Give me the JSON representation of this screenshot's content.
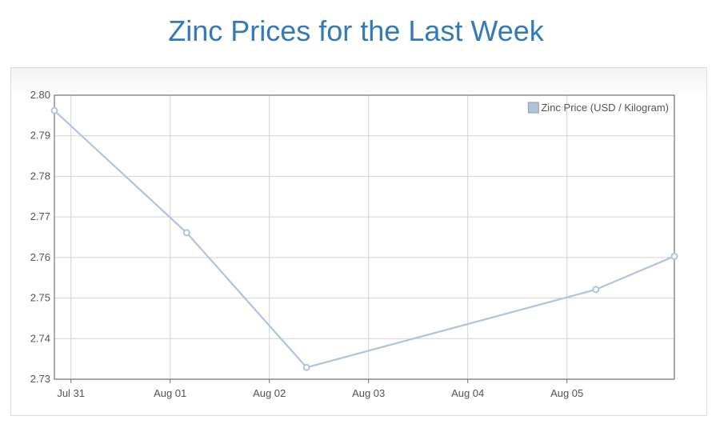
{
  "page": {
    "title": "Zinc Prices for the Last Week"
  },
  "chart_data": {
    "type": "line",
    "x_ticks": [
      "Jul 31",
      "Aug 01",
      "Aug 02",
      "Aug 03",
      "Aug 04",
      "Aug 05"
    ],
    "y_ticks": [
      "2.80",
      "2.79",
      "2.78",
      "2.77",
      "2.76",
      "2.75",
      "2.74",
      "2.73"
    ],
    "ylim": [
      2.73,
      2.8
    ],
    "xlim": [
      "2019-07-30T20:00",
      "2019-08-06T02:00"
    ],
    "grid": true,
    "legend_position": "top-right",
    "series": [
      {
        "name": "Zinc Price (USD / Kilogram)",
        "color": "#b0c4de",
        "points": [
          {
            "x": "2019-07-30T20:00",
            "y": 2.7962
          },
          {
            "x": "2019-08-01T04:00",
            "y": 2.7661
          },
          {
            "x": "2019-08-02T09:00",
            "y": 2.7329
          },
          {
            "x": "2019-08-05T07:00",
            "y": 2.7521
          },
          {
            "x": "2019-08-06T02:00",
            "y": 2.7603
          }
        ]
      }
    ],
    "xlabel": "",
    "ylabel": ""
  }
}
